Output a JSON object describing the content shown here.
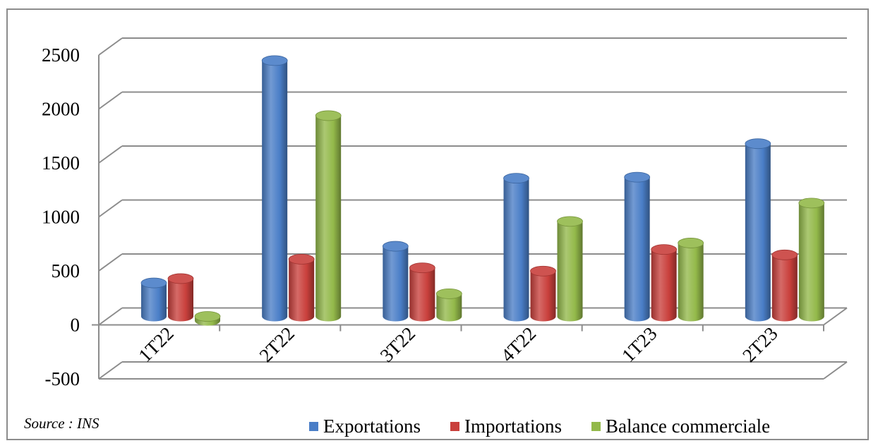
{
  "source_note": "Source : INS",
  "legend": [
    {
      "label": "Exportations",
      "color": "#4a7ec7"
    },
    {
      "label": "Importations",
      "color": "#c9403c"
    },
    {
      "label": "Balance commerciale",
      "color": "#93b94a"
    }
  ],
  "chart_data": {
    "type": "bar",
    "title": "",
    "xlabel": "",
    "ylabel": "",
    "categories": [
      "1T22",
      "2T22",
      "3T22",
      "4T22",
      "1T23",
      "2T23"
    ],
    "series": [
      {
        "name": "Exportations",
        "color": "#4a7ec7",
        "values": [
          310,
          2370,
          650,
          1280,
          1290,
          1600
        ]
      },
      {
        "name": "Importations",
        "color": "#c9403c",
        "values": [
          350,
          530,
          450,
          420,
          620,
          570
        ]
      },
      {
        "name": "Balance commerciale",
        "color": "#93b94a",
        "values": [
          -40,
          1860,
          210,
          880,
          680,
          1050
        ]
      }
    ],
    "ylim": [
      -500,
      2500
    ],
    "yticks": [
      -500,
      0,
      500,
      1000,
      1500,
      2000,
      2500
    ],
    "grid": true,
    "legend_position": "bottom-right",
    "style": "3d-cylinder"
  }
}
